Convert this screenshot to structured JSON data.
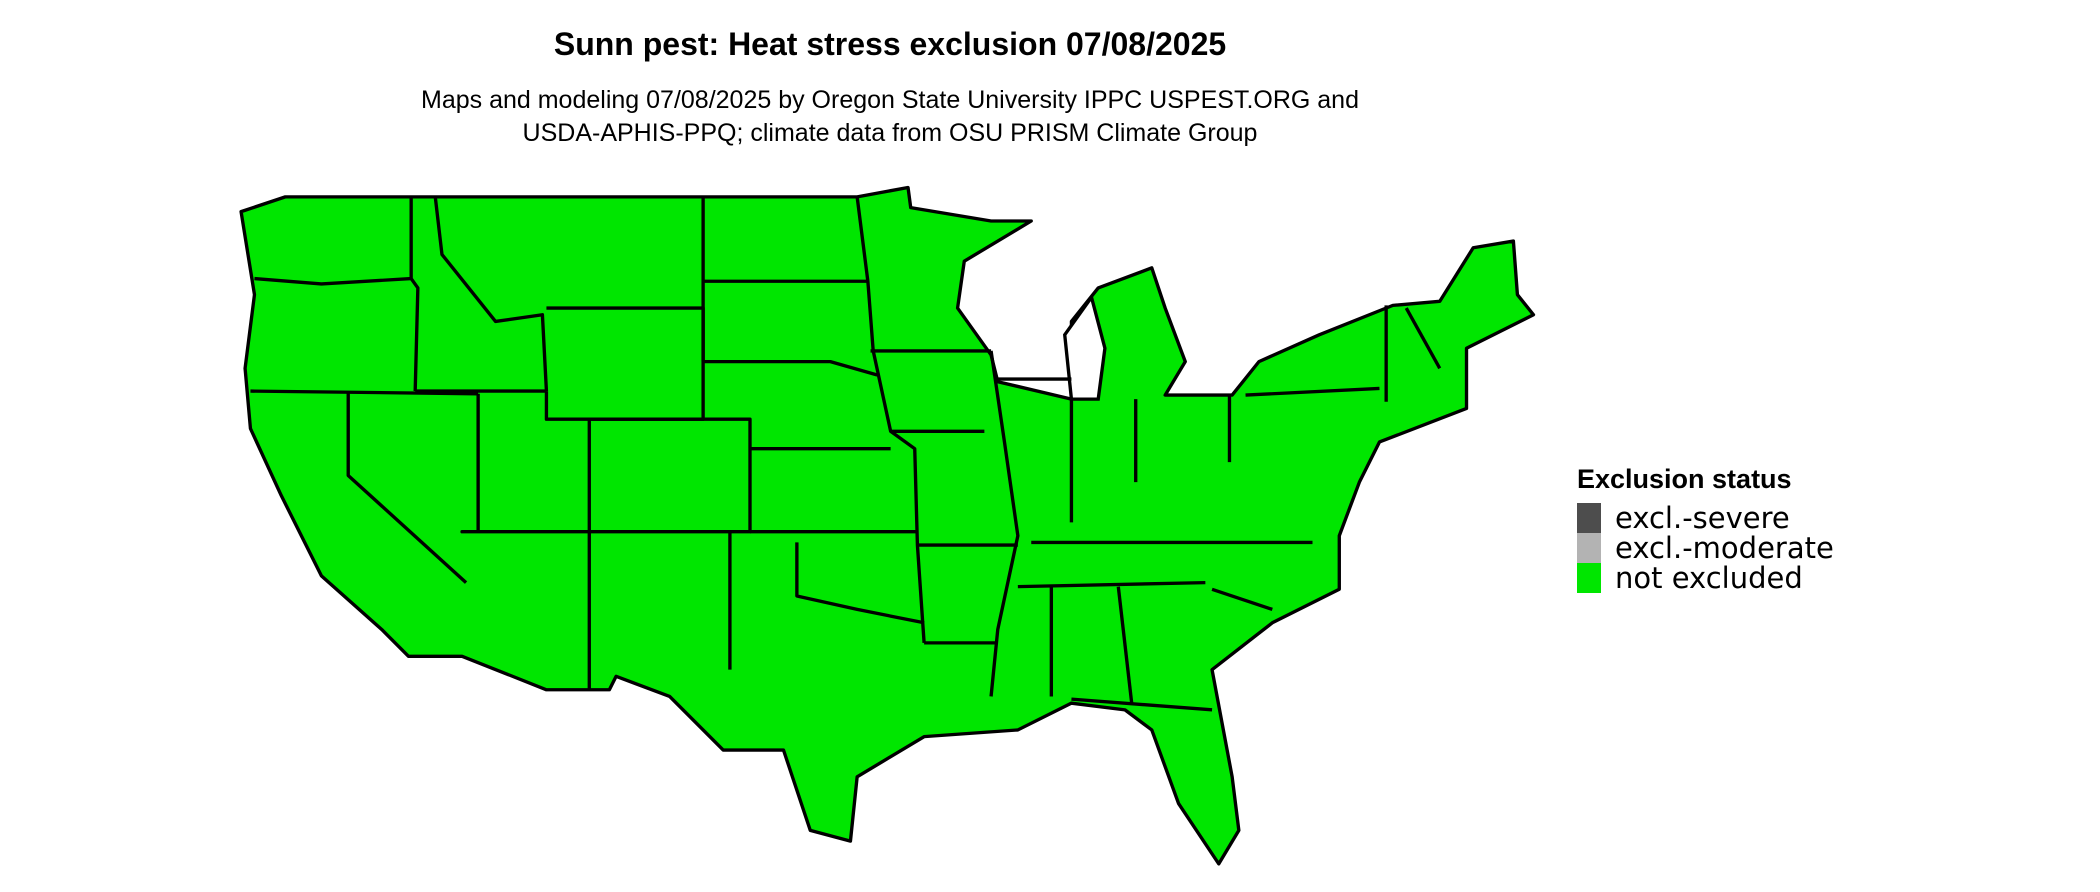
{
  "title": "Sunn pest: Heat stress exclusion 07/08/2025",
  "subtitle_line1": "Maps and modeling 07/08/2025 by Oregon State University IPPC USPEST.ORG and",
  "subtitle_line2": "USDA-APHIS-PPQ; climate data from OSU PRISM Climate Group",
  "map": {
    "region": "contiguous United States",
    "dominant_status": "not excluded",
    "fill_color": "#00e600",
    "border_color": "#000000"
  },
  "legend": {
    "title": "Exclusion status",
    "items": [
      {
        "label": "excl.-severe",
        "color": "#4d4d4d"
      },
      {
        "label": "excl.-moderate",
        "color": "#b3b3b3"
      },
      {
        "label": "not excluded",
        "color": "#00e600"
      }
    ]
  }
}
